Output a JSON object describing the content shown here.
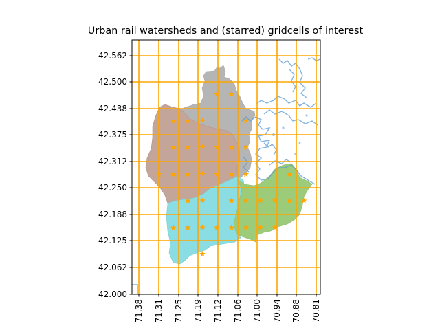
{
  "figure": {
    "title": "Urban rail watersheds and (starred) gridcells of interest"
  },
  "axes": {
    "y_tick_labels": [
      "42.000",
      "42.062",
      "42.125",
      "42.188",
      "42.250",
      "42.312",
      "42.375",
      "42.438",
      "42.500",
      "42.562"
    ],
    "x_tick_labels": [
      "71.38",
      "71.31",
      "71.25",
      "71.19",
      "71.12",
      "71.06",
      "71.00",
      "70.94",
      "70.88",
      "70.81"
    ]
  },
  "colors": {
    "grid": "#ffa500",
    "star": "#ffa500",
    "watershed_gray": "#b5b5b5",
    "watershed_brown": "#c4a59a",
    "watershed_cyan": "#8adde3",
    "watershed_green": "#9ccc7a",
    "water": "#5b9bd5",
    "spine": "#000000",
    "background": "#ffffff"
  },
  "stars": [
    {
      "lon": -71.135,
      "lat": 42.469
    },
    {
      "lon": -71.088,
      "lat": 42.469
    },
    {
      "lon": -71.276,
      "lat": 42.406
    },
    {
      "lon": -71.229,
      "lat": 42.406
    },
    {
      "lon": -71.182,
      "lat": 42.406
    },
    {
      "lon": -71.041,
      "lat": 42.406
    },
    {
      "lon": -71.276,
      "lat": 42.344
    },
    {
      "lon": -71.229,
      "lat": 42.344
    },
    {
      "lon": -71.182,
      "lat": 42.344
    },
    {
      "lon": -71.135,
      "lat": 42.344
    },
    {
      "lon": -71.088,
      "lat": 42.344
    },
    {
      "lon": -71.041,
      "lat": 42.344
    },
    {
      "lon": -71.323,
      "lat": 42.281
    },
    {
      "lon": -71.276,
      "lat": 42.281
    },
    {
      "lon": -71.229,
      "lat": 42.281
    },
    {
      "lon": -71.182,
      "lat": 42.281
    },
    {
      "lon": -71.135,
      "lat": 42.281
    },
    {
      "lon": -71.088,
      "lat": 42.281
    },
    {
      "lon": -71.041,
      "lat": 42.281
    },
    {
      "lon": -70.9,
      "lat": 42.281
    },
    {
      "lon": -71.229,
      "lat": 42.219
    },
    {
      "lon": -71.182,
      "lat": 42.219
    },
    {
      "lon": -71.088,
      "lat": 42.219
    },
    {
      "lon": -71.041,
      "lat": 42.219
    },
    {
      "lon": -70.994,
      "lat": 42.219
    },
    {
      "lon": -70.947,
      "lat": 42.219
    },
    {
      "lon": -70.9,
      "lat": 42.219
    },
    {
      "lon": -70.853,
      "lat": 42.219
    },
    {
      "lon": -71.276,
      "lat": 42.156
    },
    {
      "lon": -71.229,
      "lat": 42.156
    },
    {
      "lon": -71.182,
      "lat": 42.156
    },
    {
      "lon": -71.135,
      "lat": 42.156
    },
    {
      "lon": -71.088,
      "lat": 42.156
    },
    {
      "lon": -71.041,
      "lat": 42.156
    },
    {
      "lon": -70.994,
      "lat": 42.156
    },
    {
      "lon": -70.947,
      "lat": 42.156
    },
    {
      "lon": -71.182,
      "lat": 42.094
    }
  ]
}
